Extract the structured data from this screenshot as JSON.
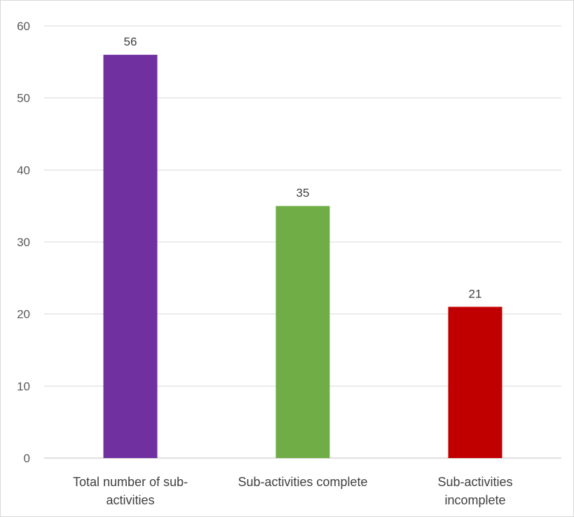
{
  "chart_data": {
    "type": "bar",
    "title": "",
    "xlabel": "",
    "ylabel": "",
    "ylim": [
      0,
      60
    ],
    "yticks": [
      0,
      10,
      20,
      30,
      40,
      50,
      60
    ],
    "grid": true,
    "categories": [
      [
        "Total number of sub-",
        "activities"
      ],
      [
        "Sub-activities complete"
      ],
      [
        "Sub-activities",
        "incomplete"
      ]
    ],
    "values": [
      56,
      35,
      21
    ],
    "colors": [
      "#7030a0",
      "#70ad47",
      "#c00000"
    ],
    "data_labels": [
      "56",
      "35",
      "21"
    ]
  }
}
